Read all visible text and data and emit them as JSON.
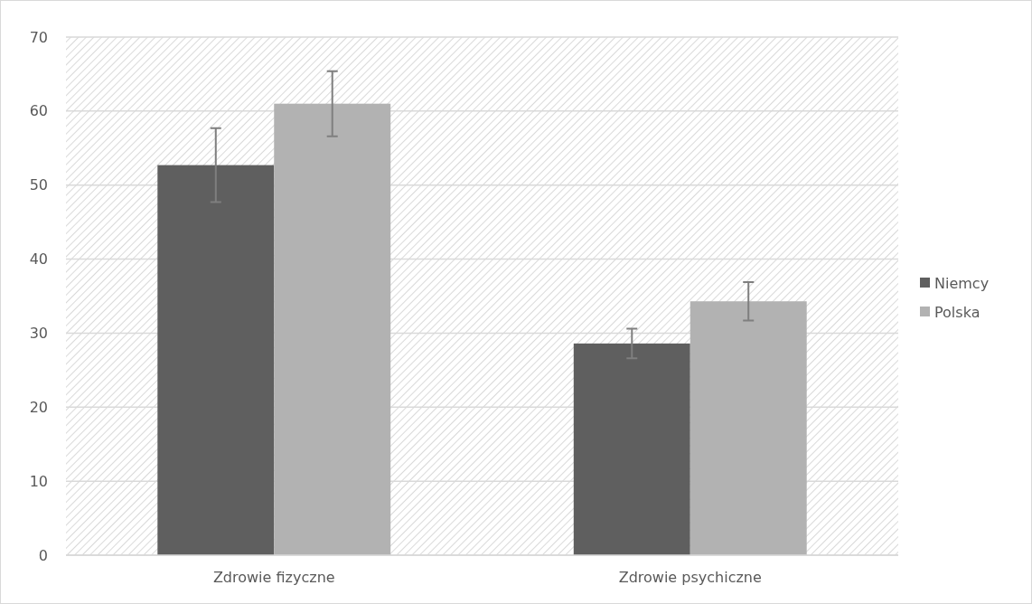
{
  "chart_data": {
    "type": "bar",
    "categories": [
      "Zdrowie fizyczne",
      "Zdrowie psychiczne"
    ],
    "series": [
      {
        "name": "Niemcy",
        "color": "#5f5f5f",
        "values": [
          52.7,
          28.6
        ],
        "errors": [
          5,
          2
        ]
      },
      {
        "name": "Polska",
        "color": "#b2b2b2",
        "values": [
          61,
          34.3
        ],
        "errors": [
          4.4,
          2.6
        ]
      }
    ],
    "ylim": [
      0,
      70
    ],
    "yticks": [
      0,
      10,
      20,
      30,
      40,
      50,
      60,
      70
    ],
    "grid": "y",
    "legend": "right"
  }
}
